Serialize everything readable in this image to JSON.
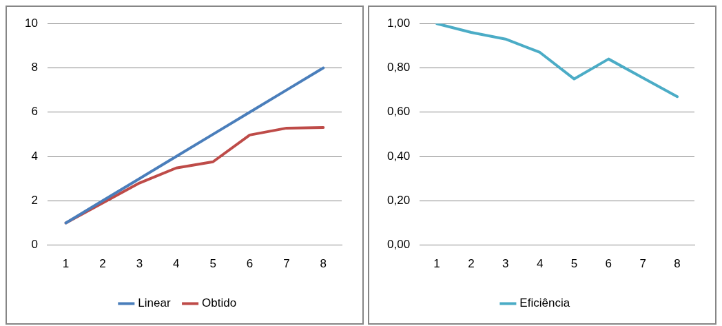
{
  "chart_data": [
    {
      "type": "line",
      "categories": [
        "1",
        "2",
        "3",
        "4",
        "5",
        "6",
        "7",
        "8"
      ],
      "series": [
        {
          "name": "Linear",
          "color": "#4a7ebb",
          "values": [
            1,
            2,
            3,
            4,
            5,
            6,
            7,
            8
          ]
        },
        {
          "name": "Obtido",
          "color": "#be4b48",
          "values": [
            1,
            1.9,
            2.8,
            3.48,
            3.76,
            4.97,
            5.28,
            5.31
          ]
        }
      ],
      "ylim": [
        0,
        10
      ],
      "yticks": [
        0,
        2,
        4,
        6,
        8,
        10
      ],
      "grid": "y",
      "legend": "bottom",
      "marker": "none",
      "line_style": "solid"
    },
    {
      "type": "line",
      "categories": [
        "1",
        "2",
        "3",
        "4",
        "5",
        "6",
        "7",
        "8"
      ],
      "series": [
        {
          "name": "Eficiência",
          "color": "#4bacc6",
          "values": [
            1,
            0.96,
            0.93,
            0.87,
            0.75,
            0.84,
            0.755,
            0.67
          ]
        }
      ],
      "ylim": [
        0,
        1
      ],
      "yticks": [
        {
          "value": 0,
          "label": "0,00"
        },
        {
          "value": 0.2,
          "label": "0,20"
        },
        {
          "value": 0.4,
          "label": "0,40"
        },
        {
          "value": 0.6,
          "label": "0,60"
        },
        {
          "value": 0.8,
          "label": "0,80"
        },
        {
          "value": 1,
          "label": "1,00"
        }
      ],
      "grid": "y",
      "legend": "bottom",
      "marker": "none",
      "line_style": "solid"
    }
  ]
}
